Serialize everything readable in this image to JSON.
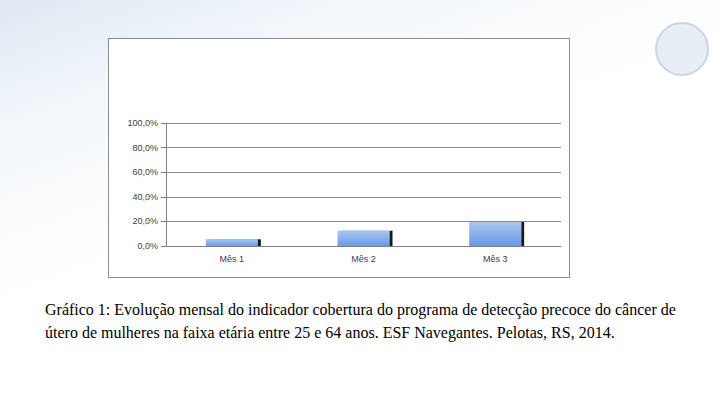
{
  "chart_data": {
    "type": "bar",
    "categories": [
      "Mês 1",
      "Mês 2",
      "Mês 3"
    ],
    "values": [
      5.5,
      12.5,
      19.5
    ],
    "color": "#6a9ae0",
    "ylim": [
      0,
      100
    ],
    "yticks": [
      {
        "value": 0,
        "label": "0,0%"
      },
      {
        "value": 20,
        "label": "20,0%"
      },
      {
        "value": 40,
        "label": "40,0%"
      },
      {
        "value": 60,
        "label": "60,0%"
      },
      {
        "value": 80,
        "label": "80,0%"
      },
      {
        "value": 100,
        "label": "100,0%"
      }
    ],
    "grid": true,
    "caption": "Gráfico 1: Evolução mensal do indicador cobertura do programa de detecção precoce do câncer de útero de mulheres na faixa etária entre 25 e 64 anos. ESF Navegantes. Pelotas, RS, 2014."
  }
}
